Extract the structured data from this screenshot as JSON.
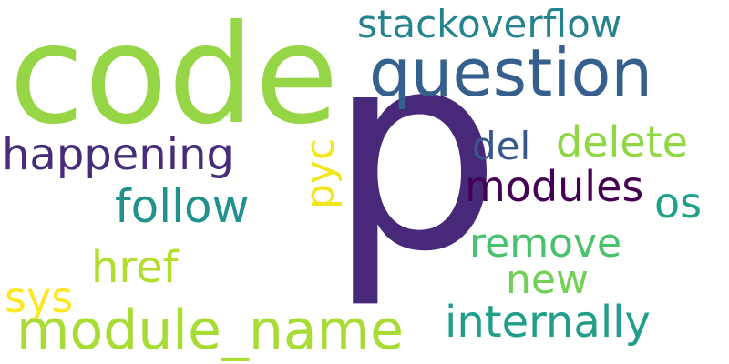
{
  "word_cloud": {
    "background_color": "#ffffff",
    "words": [
      {
        "text": "p",
        "color": "#482878"
      },
      {
        "text": "code",
        "color": "#96d646"
      },
      {
        "text": "question",
        "color": "#355f8d"
      },
      {
        "text": "stackoverflow",
        "color": "#25838e"
      },
      {
        "text": "happening",
        "color": "#472c7a"
      },
      {
        "text": "del",
        "color": "#39568c"
      },
      {
        "text": "delete",
        "color": "#8fd744"
      },
      {
        "text": "modules",
        "color": "#440154"
      },
      {
        "text": "follow",
        "color": "#21918c"
      },
      {
        "text": "os",
        "color": "#1fa088"
      },
      {
        "text": "pyc",
        "color": "#f1e51d"
      },
      {
        "text": "remove",
        "color": "#4ac16d"
      },
      {
        "text": "href",
        "color": "#b2dd2d"
      },
      {
        "text": "sys",
        "color": "#fde725"
      },
      {
        "text": "new",
        "color": "#73d056"
      },
      {
        "text": "module_name",
        "color": "#a8db34"
      },
      {
        "text": "internally",
        "color": "#1f9e89"
      }
    ]
  }
}
